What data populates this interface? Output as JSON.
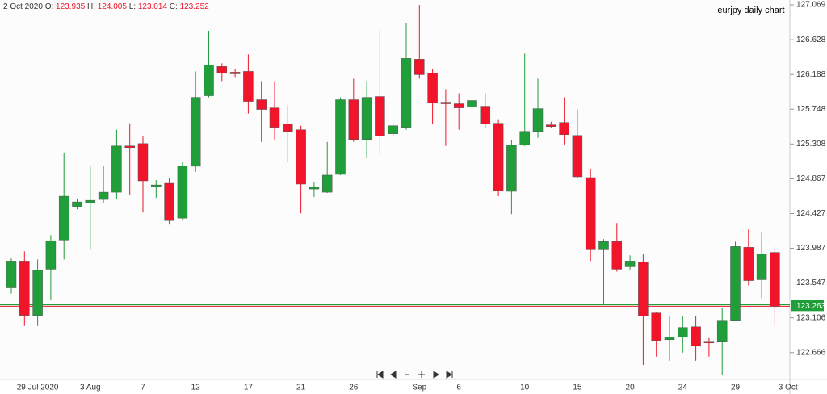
{
  "chart_data": {
    "type": "candlestick",
    "title": "eurjpy daily chart",
    "header_date": "2 Oct 2020",
    "ohlc_labels": [
      "O:",
      "H:",
      "L:",
      "C:"
    ],
    "up_color": "#1f9e3a",
    "down_color": "#f2142a",
    "categories": [
      null,
      null,
      "29 Jul 2020",
      null,
      null,
      null,
      "3 Aug",
      null,
      null,
      null,
      "7",
      null,
      null,
      null,
      "12",
      null,
      null,
      null,
      "17",
      null,
      null,
      null,
      "21",
      null,
      null,
      null,
      "26",
      null,
      null,
      null,
      null,
      "Sep",
      null,
      null,
      "6",
      null,
      null,
      null,
      null,
      "10",
      null,
      null,
      null,
      "15",
      null,
      null,
      null,
      "20",
      null,
      null,
      null,
      "24",
      null,
      null,
      null,
      "29",
      null,
      null,
      null,
      "3 Oct"
    ],
    "open": [
      123.486,
      123.825,
      123.137,
      123.722,
      124.091,
      124.513,
      124.564,
      124.605,
      124.697,
      125.283,
      125.313,
      124.769,
      124.81,
      124.369,
      125.026,
      125.919,
      126.289,
      126.217,
      126.227,
      125.868,
      125.765,
      125.56,
      125.488,
      124.738,
      124.697,
      124.923,
      125.868,
      125.365,
      125.909,
      125.437,
      125.519,
      126.381,
      126.207,
      125.837,
      125.817,
      125.776,
      125.786,
      125.57,
      124.708,
      125.293,
      125.467,
      125.55,
      125.58,
      125.416,
      124.882,
      123.968,
      124.071,
      123.753,
      123.815,
      123.168,
      122.829,
      122.86,
      122.993,
      122.809,
      122.809,
      123.075,
      123.999,
      123.589,
      123.935,
      null
    ],
    "high": [
      123.866,
      123.948,
      123.845,
      124.153,
      125.2,
      124.615,
      125.026,
      125.026,
      125.488,
      125.57,
      125.406,
      124.851,
      124.872,
      125.077,
      126.227,
      126.74,
      126.33,
      126.258,
      126.443,
      126.104,
      126.104,
      125.796,
      125.539,
      124.82,
      125.334,
      125.898,
      126.135,
      126.104,
      126.751,
      125.57,
      126.843,
      127.069,
      126.258,
      126.001,
      125.95,
      125.95,
      125.95,
      125.611,
      125.354,
      126.453,
      126.135,
      125.59,
      125.898,
      125.745,
      124.995,
      124.102,
      124.307,
      123.897,
      123.917,
      123.178,
      123.127,
      123.127,
      123.127,
      122.85,
      123.229,
      124.071,
      124.225,
      124.194,
      124.005,
      null
    ],
    "low": [
      123.414,
      123.003,
      123.003,
      123.332,
      123.845,
      124.482,
      123.968,
      124.564,
      124.615,
      124.666,
      124.44,
      124.625,
      124.287,
      124.338,
      124.954,
      125.898,
      126.104,
      126.155,
      125.693,
      125.334,
      125.365,
      125.077,
      124.43,
      124.636,
      124.687,
      124.913,
      125.334,
      125.128,
      125.18,
      125.406,
      125.488,
      126.135,
      125.56,
      125.283,
      125.488,
      125.714,
      125.508,
      124.646,
      124.42,
      125.283,
      125.385,
      125.508,
      125.303,
      124.872,
      123.825,
      123.28,
      123.691,
      123.712,
      122.51,
      122.614,
      122.563,
      122.665,
      122.563,
      122.614,
      122.388,
      123.075,
      123.517,
      123.352,
      123.014,
      null
    ],
    "close": [
      123.825,
      123.137,
      123.712,
      124.081,
      124.646,
      124.574,
      124.594,
      124.697,
      125.283,
      125.262,
      124.841,
      124.789,
      124.338,
      125.026,
      125.898,
      126.309,
      126.207,
      126.196,
      125.847,
      125.745,
      125.519,
      125.467,
      124.8,
      124.759,
      124.913,
      125.868,
      125.365,
      125.898,
      125.406,
      125.539,
      126.391,
      126.186,
      125.827,
      125.817,
      125.765,
      125.858,
      125.56,
      124.718,
      125.293,
      125.467,
      125.755,
      125.529,
      125.426,
      124.892,
      123.968,
      124.071,
      123.722,
      123.825,
      123.127,
      122.819,
      122.86,
      122.983,
      122.747,
      122.788,
      123.075,
      124.009,
      123.578,
      123.917,
      123.252,
      null
    ],
    "last_price": 123.263,
    "ylim": [
      122.326,
      127.131
    ],
    "yticks": [
      127.069,
      126.628,
      126.188,
      125.748,
      125.308,
      124.867,
      124.427,
      123.987,
      123.547,
      123.106,
      122.666
    ]
  }
}
